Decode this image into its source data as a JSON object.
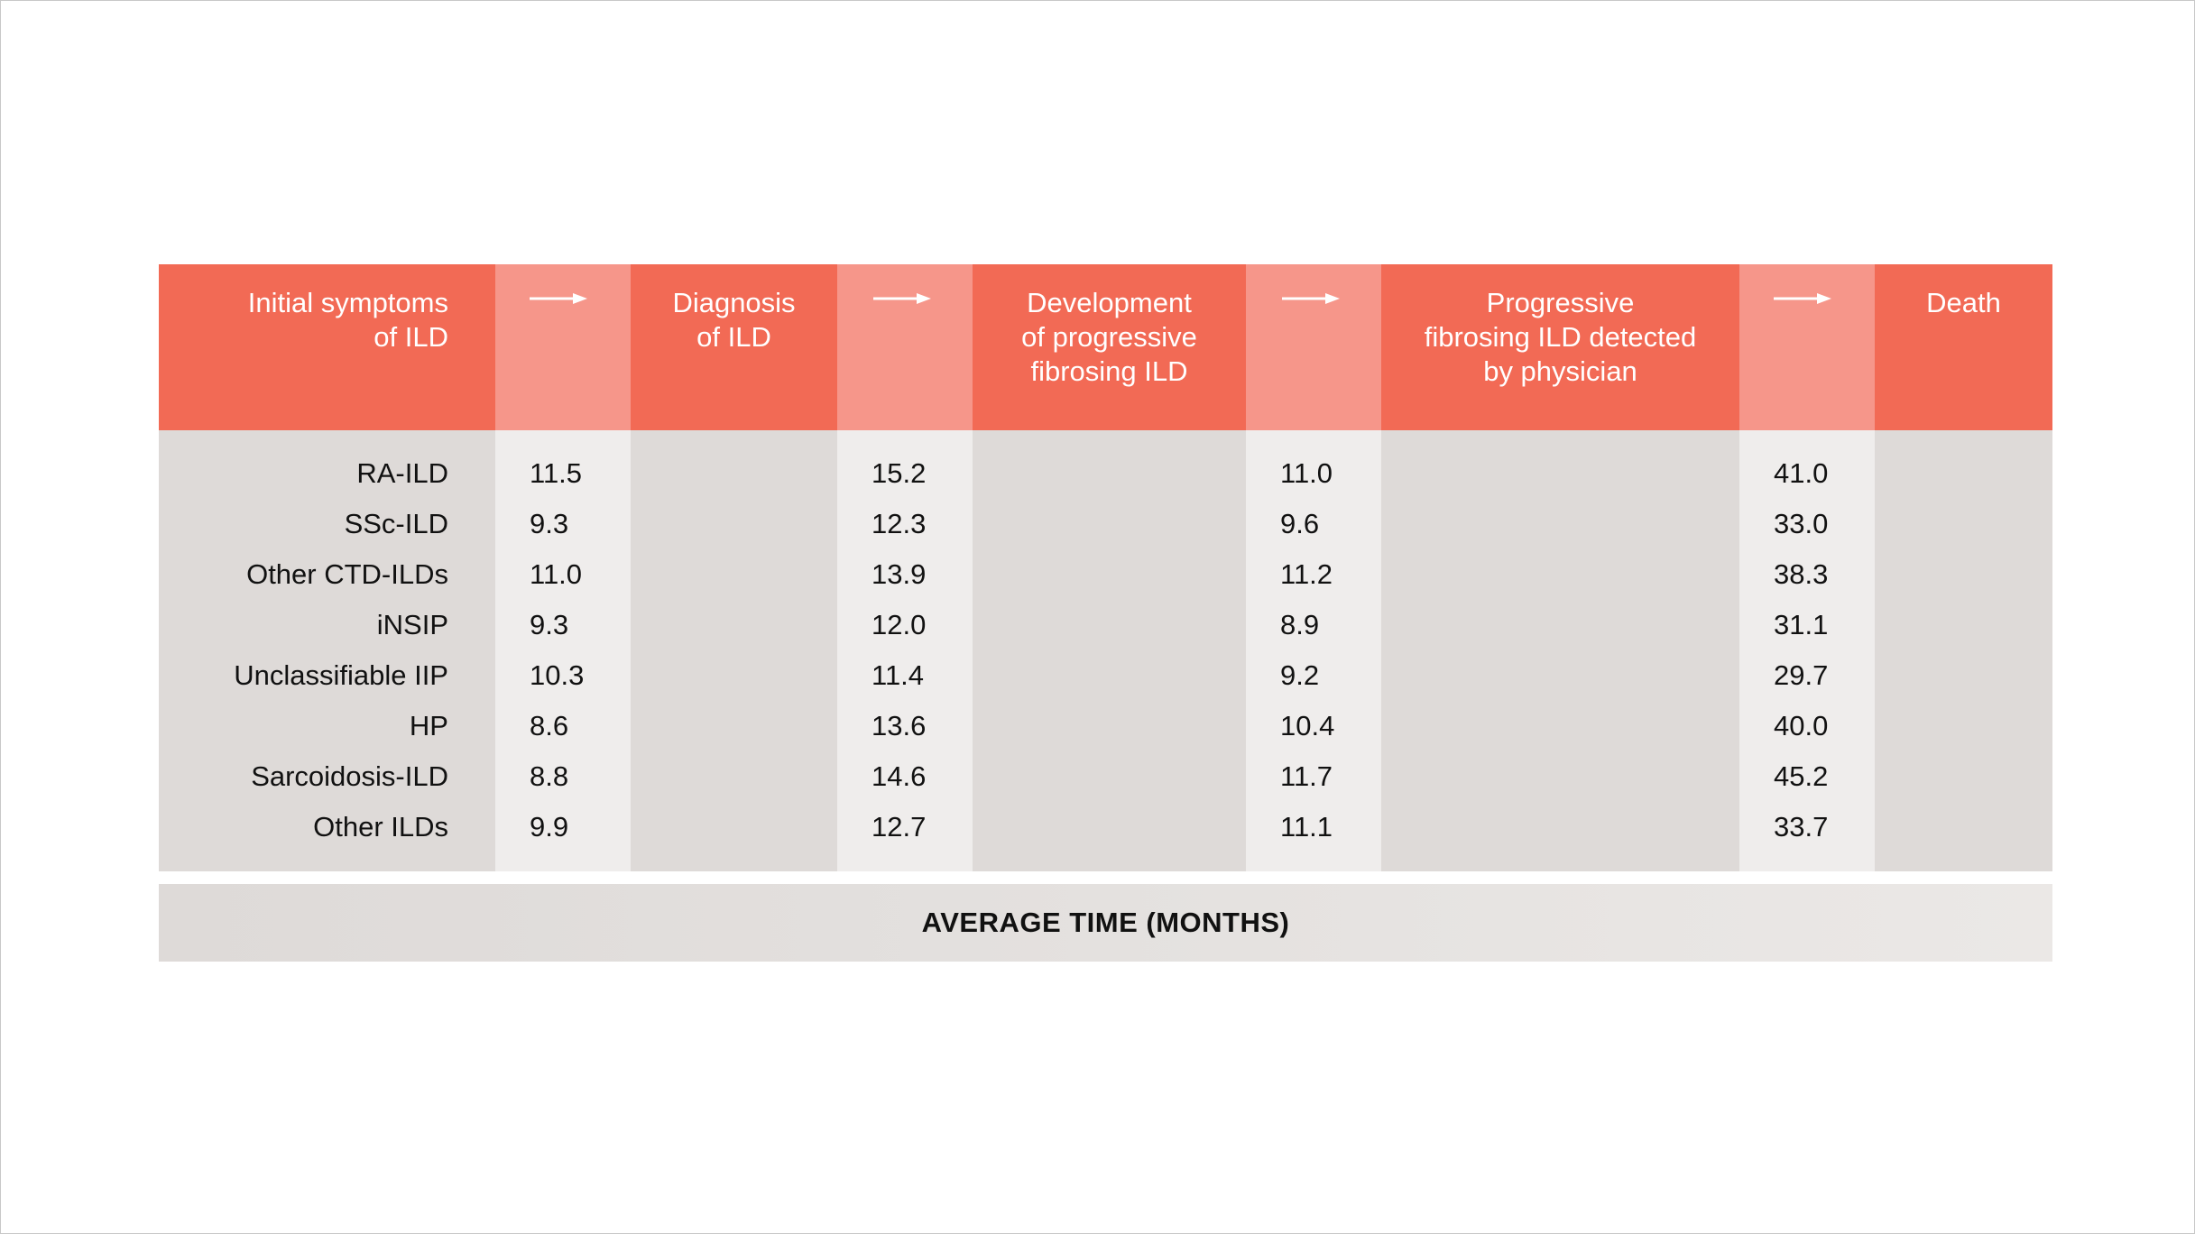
{
  "chart_data": {
    "type": "table",
    "columns": [
      "Initial symptoms of ILD",
      "Diagnosis of ILD",
      "Development of progressive fibrosing ILD",
      "Progressive fibrosing ILD detected by physician",
      "Death"
    ],
    "header_lines": {
      "initial": [
        "Initial symptoms",
        "of ILD"
      ],
      "diagnosis": [
        "Diagnosis",
        "of ILD"
      ],
      "development": [
        "Development",
        "of progressive",
        "fibrosing ILD"
      ],
      "detected": [
        "Progressive",
        "fibrosing ILD detected",
        "by physician"
      ],
      "death": [
        "Death"
      ]
    },
    "rows": [
      "RA-ILD",
      "SSc-ILD",
      "Other CTD-ILDs",
      "iNSIP",
      "Unclassifiable IIP",
      "HP",
      "Sarcoidosis-ILD",
      "Other ILDs"
    ],
    "series": [
      {
        "values": [
          "11.5",
          "9.3",
          "11.0",
          "9.3",
          "10.3",
          "8.6",
          "8.8",
          "9.9"
        ]
      },
      {
        "values": [
          "15.2",
          "12.3",
          "13.9",
          "12.0",
          "11.4",
          "13.6",
          "14.6",
          "12.7"
        ]
      },
      {
        "values": [
          "11.0",
          "9.6",
          "11.2",
          "8.9",
          "9.2",
          "10.4",
          "11.7",
          "11.1"
        ]
      },
      {
        "values": [
          "41.0",
          "33.0",
          "38.3",
          "31.1",
          "29.7",
          "40.0",
          "45.2",
          "33.7"
        ]
      }
    ],
    "footer": "AVERAGE TIME (MONTHS)",
    "colors": {
      "stage_header": "#f26a55",
      "arrow_header": "#f6968a",
      "stage_body": "#dedad8",
      "arrow_body": "#efedec"
    }
  }
}
